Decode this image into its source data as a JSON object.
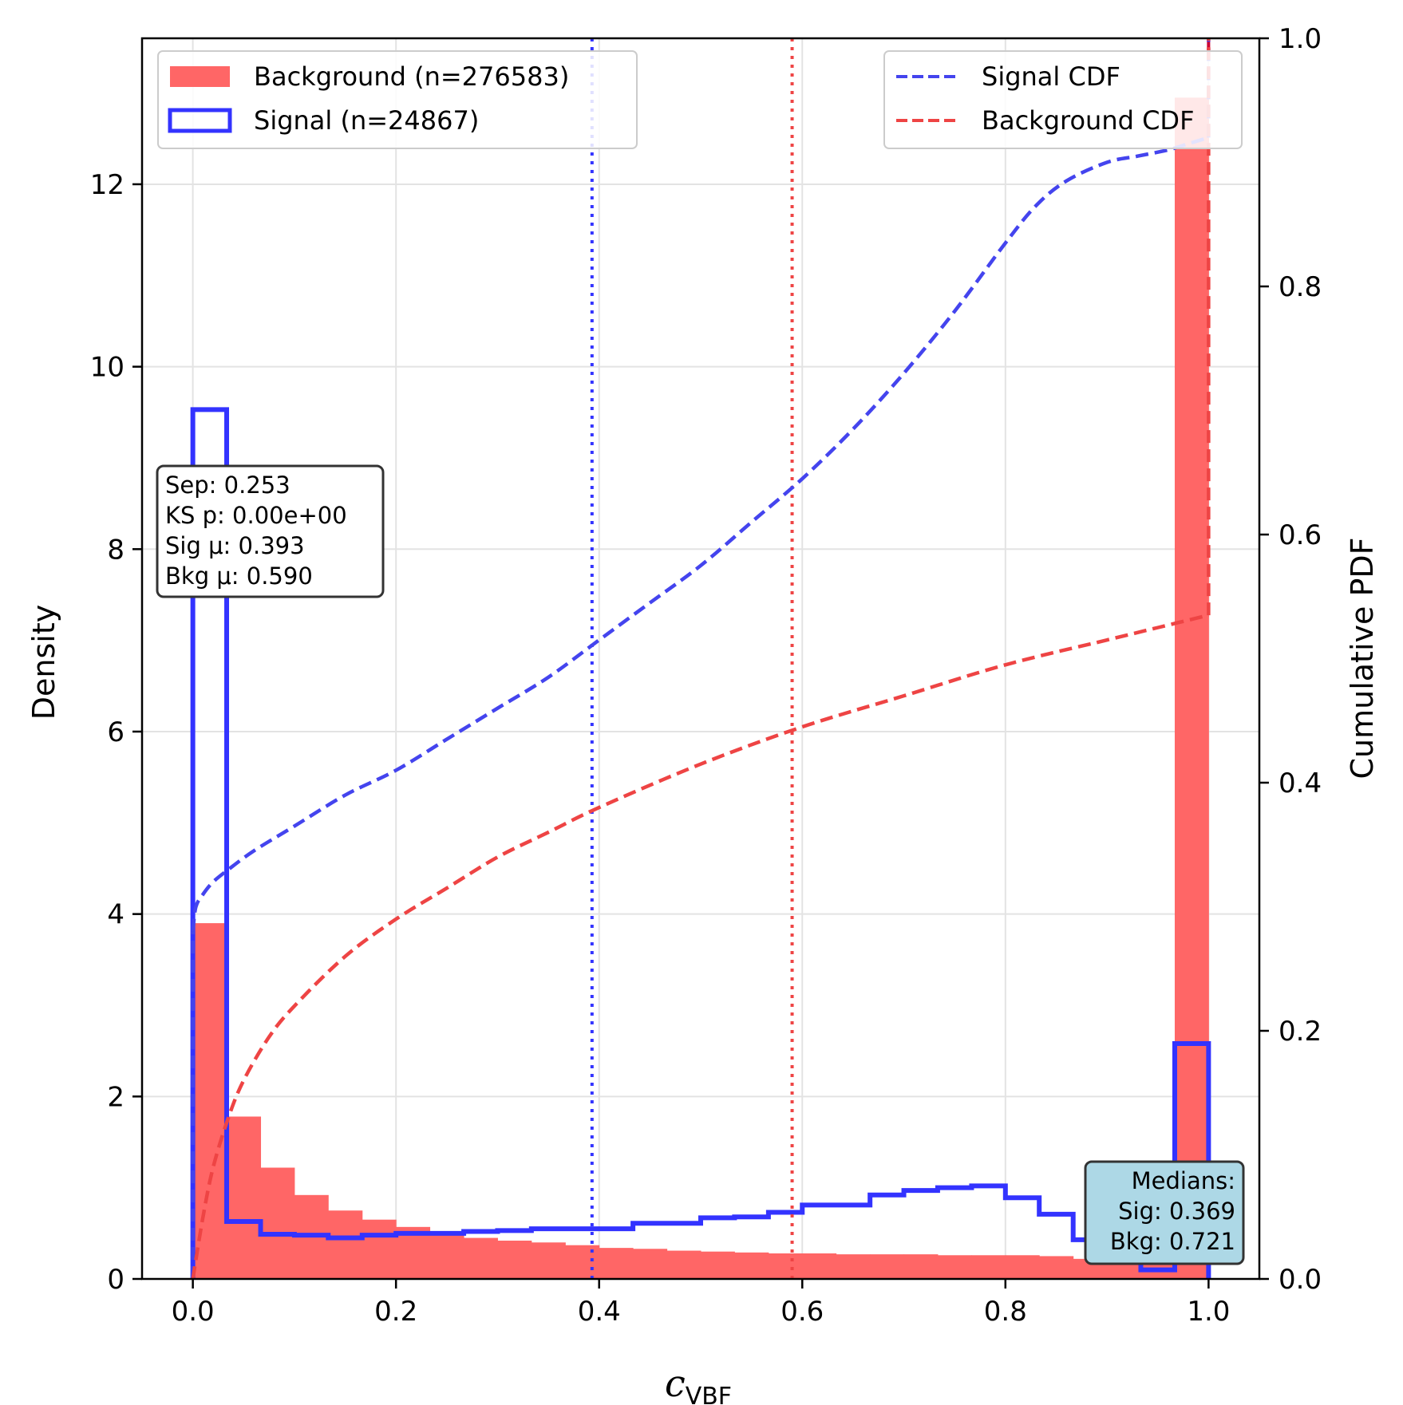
{
  "chart_data": {
    "type": "histogram",
    "xlabel_main": "c",
    "xlabel_sub": "VBF",
    "ylabel_left": "Density",
    "ylabel_right": "Cumulative PDF",
    "xlim": [
      -0.05,
      1.05
    ],
    "ylim_left": [
      0,
      13.6
    ],
    "ylim_right": [
      0,
      1.0
    ],
    "x_ticks": [
      "0.0",
      "0.2",
      "0.4",
      "0.6",
      "0.8",
      "1.0"
    ],
    "y_ticks_left": [
      "0",
      "2",
      "4",
      "6",
      "8",
      "10",
      "12"
    ],
    "y_ticks_right": [
      "0.0",
      "0.2",
      "0.4",
      "0.6",
      "0.8",
      "1.0"
    ],
    "grid": true,
    "bin_edges": [
      0.0,
      0.0333,
      0.0667,
      0.1,
      0.1333,
      0.1667,
      0.2,
      0.2333,
      0.2667,
      0.3,
      0.3333,
      0.3667,
      0.4,
      0.4333,
      0.4667,
      0.5,
      0.5333,
      0.5667,
      0.6,
      0.6333,
      0.6667,
      0.7,
      0.7333,
      0.7667,
      0.8,
      0.8333,
      0.8667,
      0.9,
      0.9333,
      0.9667,
      1.0
    ],
    "series": [
      {
        "name": "Background (n=276583)",
        "kind": "filled-histogram",
        "color": "#ff6666",
        "values": [
          3.9,
          1.78,
          1.22,
          0.92,
          0.75,
          0.65,
          0.57,
          0.5,
          0.45,
          0.42,
          0.4,
          0.37,
          0.34,
          0.33,
          0.31,
          0.3,
          0.29,
          0.28,
          0.28,
          0.27,
          0.27,
          0.27,
          0.26,
          0.26,
          0.26,
          0.25,
          0.22,
          0.2,
          0.21,
          12.95
        ]
      },
      {
        "name": "Signal (n=24867)",
        "kind": "step-histogram",
        "color": "#3333ff",
        "values": [
          9.53,
          0.63,
          0.49,
          0.48,
          0.45,
          0.48,
          0.5,
          0.5,
          0.52,
          0.53,
          0.55,
          0.55,
          0.55,
          0.61,
          0.61,
          0.67,
          0.68,
          0.73,
          0.81,
          0.81,
          0.92,
          0.97,
          1.0,
          1.02,
          0.89,
          0.71,
          0.43,
          0.25,
          0.1,
          2.58
        ]
      },
      {
        "name": "Signal CDF",
        "kind": "cdf",
        "axis": "right",
        "color": "#4444ee",
        "x": [
          0.0,
          0.003,
          0.01,
          0.02,
          0.035,
          0.06,
          0.1,
          0.15,
          0.2,
          0.25,
          0.3,
          0.35,
          0.4,
          0.45,
          0.5,
          0.55,
          0.6,
          0.65,
          0.7,
          0.75,
          0.8,
          0.83,
          0.86,
          0.9,
          0.93,
          0.96,
          0.98,
          1.0
        ],
        "y": [
          0.28,
          0.3,
          0.31,
          0.32,
          0.33,
          0.345,
          0.365,
          0.39,
          0.41,
          0.435,
          0.46,
          0.485,
          0.515,
          0.545,
          0.575,
          0.61,
          0.645,
          0.685,
          0.73,
          0.78,
          0.835,
          0.865,
          0.885,
          0.9,
          0.905,
          0.91,
          0.915,
          0.92
        ]
      },
      {
        "name": "Background CDF",
        "kind": "cdf",
        "axis": "right",
        "color": "#ee4444",
        "x": [
          0.0,
          0.01,
          0.02,
          0.035,
          0.05,
          0.075,
          0.1,
          0.15,
          0.2,
          0.25,
          0.3,
          0.35,
          0.4,
          0.5,
          0.6,
          0.7,
          0.8,
          0.9,
          0.95,
          1.0
        ],
        "y": [
          0.0,
          0.05,
          0.09,
          0.13,
          0.16,
          0.195,
          0.22,
          0.26,
          0.29,
          0.315,
          0.34,
          0.36,
          0.38,
          0.415,
          0.445,
          0.47,
          0.495,
          0.515,
          0.525,
          0.535
        ]
      }
    ],
    "vlines": [
      {
        "name": "Signal mean",
        "x": 0.393,
        "color": "#3333ff"
      },
      {
        "name": "Background mean",
        "x": 0.59,
        "color": "#ee4444"
      }
    ],
    "legend_hist": {
      "position": "upper-left",
      "entries": [
        "Background (n=276583)",
        "Signal (n=24867)"
      ]
    },
    "legend_cdf": {
      "position": "upper-right",
      "entries": [
        "Signal CDF",
        "Background CDF"
      ]
    },
    "stats_box": {
      "lines": [
        "Sep: 0.253",
        "KS p: 0.00e+00",
        "Sig μ: 0.393",
        "Bkg μ: 0.590"
      ]
    },
    "medians_box": {
      "lines": [
        "Medians:",
        "Sig: 0.369",
        "Bkg: 0.721"
      ],
      "background": "#add8e6"
    }
  }
}
